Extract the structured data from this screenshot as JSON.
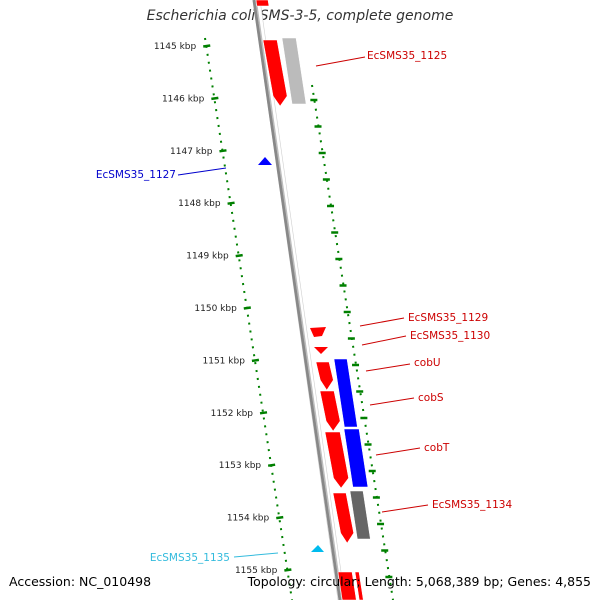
{
  "title": "Escherichia coli SMS-3-5, complete genome",
  "footer": {
    "accession": "Accession: NC_010498",
    "summary": "Topology: circular; Length: 5,068,389 bp; Genes: 4,855"
  },
  "ruler": {
    "unit": "kbp",
    "ticks": [
      1145,
      1146,
      1147,
      1148,
      1149,
      1150,
      1151,
      1152,
      1153,
      1154,
      1155
    ]
  },
  "colors": {
    "forward_gene": "#ff0000",
    "reverse_gene": "#0000ff",
    "pseudo_gene": "#bbbbbb",
    "dark_gene": "#666666",
    "small_feature": "#00bbee",
    "tick": "#008000",
    "label_red": "#cc0000",
    "label_blue": "#0000cc",
    "label_cyan": "#33bbdd",
    "backbone": "#888888"
  },
  "genes": [
    {
      "label": "EcSMS35_1125",
      "color": "label_red"
    },
    {
      "label": "EcSMS35_1127",
      "color": "label_blue"
    },
    {
      "label": "EcSMS35_1129",
      "color": "label_red"
    },
    {
      "label": "EcSMS35_1130",
      "color": "label_red"
    },
    {
      "label": "cobU",
      "color": "label_red"
    },
    {
      "label": "cobS",
      "color": "label_red"
    },
    {
      "label": "cobT",
      "color": "label_red"
    },
    {
      "label": "EcSMS35_1134",
      "color": "label_red"
    },
    {
      "label": "EcSMS35_1135",
      "color": "label_cyan"
    }
  ]
}
